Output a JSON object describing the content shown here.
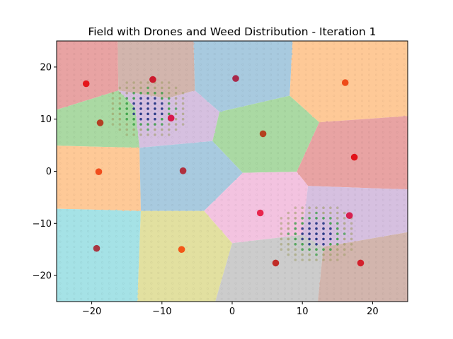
{
  "chart_data": {
    "type": "scatter",
    "title": "Field with Drones and Weed Distribution - Iteration 1",
    "xlabel": "",
    "ylabel": "",
    "xlim": [
      -25,
      25
    ],
    "ylim": [
      -25,
      25
    ],
    "x_ticks": [
      -20,
      -10,
      0,
      10,
      20
    ],
    "x_tick_labels": [
      "−20",
      "−10",
      "0",
      "10",
      "20"
    ],
    "y_ticks": [
      -20,
      -10,
      0,
      10,
      20
    ],
    "y_tick_labels": [
      "−20",
      "−10",
      "0",
      "10",
      "20"
    ],
    "grid": false,
    "regions": [
      {
        "id": 1,
        "color": "#e8a3a3",
        "polygon": [
          [
            -25,
            25
          ],
          [
            -16.3,
            25
          ],
          [
            -16.2,
            15.5
          ],
          [
            -25,
            11.8
          ]
        ]
      },
      {
        "id": 2,
        "color": "#d2b5ad",
        "polygon": [
          [
            -16.3,
            25
          ],
          [
            -5.5,
            25
          ],
          [
            -5.3,
            15.5
          ],
          [
            -9.2,
            14
          ],
          [
            -16.2,
            15.5
          ]
        ]
      },
      {
        "id": 3,
        "color": "#a8cadf",
        "polygon": [
          [
            -5.5,
            25
          ],
          [
            8.6,
            25
          ],
          [
            8.2,
            14.5
          ],
          [
            -1.8,
            11.4
          ],
          [
            -5.3,
            15.5
          ]
        ]
      },
      {
        "id": 4,
        "color": "#fec997",
        "polygon": [
          [
            8.6,
            25
          ],
          [
            25,
            25
          ],
          [
            25,
            10.6
          ],
          [
            12.4,
            9.4
          ],
          [
            8.2,
            14.5
          ]
        ]
      },
      {
        "id": 5,
        "color": "#aad9a3",
        "polygon": [
          [
            -25,
            11.8
          ],
          [
            -16.2,
            15.5
          ],
          [
            -13.8,
            12.2
          ],
          [
            -13.2,
            4.5
          ],
          [
            -25,
            4.9
          ]
        ]
      },
      {
        "id": 6,
        "color": "#d6c0e0",
        "polygon": [
          [
            -16.2,
            15.5
          ],
          [
            -9.2,
            14
          ],
          [
            -5.3,
            15.5
          ],
          [
            -1.8,
            11.4
          ],
          [
            -2.8,
            5.8
          ],
          [
            -13.2,
            4.5
          ],
          [
            -13.8,
            12.2
          ]
        ]
      },
      {
        "id": 7,
        "color": "#aad9a3",
        "polygon": [
          [
            -1.8,
            11.4
          ],
          [
            8.2,
            14.5
          ],
          [
            12.4,
            9.4
          ],
          [
            9.2,
            -0.1
          ],
          [
            1.5,
            -0.3
          ],
          [
            -2.8,
            5.8
          ]
        ]
      },
      {
        "id": 8,
        "color": "#e8a3a3",
        "polygon": [
          [
            12.4,
            9.4
          ],
          [
            25,
            10.6
          ],
          [
            25,
            -3.5
          ],
          [
            10.8,
            -2.8
          ],
          [
            9.2,
            -0.1
          ]
        ]
      },
      {
        "id": 9,
        "color": "#fec997",
        "polygon": [
          [
            -25,
            4.9
          ],
          [
            -13.2,
            4.5
          ],
          [
            -13,
            -7.6
          ],
          [
            -25,
            -7.2
          ]
        ]
      },
      {
        "id": 10,
        "color": "#a8cadf",
        "polygon": [
          [
            -13.2,
            4.5
          ],
          [
            -2.8,
            5.8
          ],
          [
            1.5,
            -0.3
          ],
          [
            -4,
            -7.6
          ],
          [
            -13,
            -7.6
          ]
        ]
      },
      {
        "id": 11,
        "color": "#f3c3e0",
        "polygon": [
          [
            1.5,
            -0.3
          ],
          [
            9.2,
            -0.1
          ],
          [
            10.8,
            -2.8
          ],
          [
            10,
            -12.2
          ],
          [
            0,
            -13.8
          ],
          [
            -4,
            -7.6
          ]
        ]
      },
      {
        "id": 12,
        "color": "#d6c0e0",
        "polygon": [
          [
            10.8,
            -2.8
          ],
          [
            25,
            -3.5
          ],
          [
            25,
            -11.7
          ],
          [
            13,
            -14.5
          ],
          [
            10,
            -12.2
          ]
        ]
      },
      {
        "id": 13,
        "color": "#a5e2e6",
        "polygon": [
          [
            -25,
            -7.2
          ],
          [
            -13,
            -7.6
          ],
          [
            -13.5,
            -25
          ],
          [
            -25,
            -25
          ]
        ]
      },
      {
        "id": 14,
        "color": "#e2e0a0",
        "polygon": [
          [
            -13,
            -7.6
          ],
          [
            -4,
            -7.6
          ],
          [
            0,
            -13.8
          ],
          [
            -2.4,
            -25
          ],
          [
            -13.5,
            -25
          ]
        ]
      },
      {
        "id": 15,
        "color": "#cccccc",
        "polygon": [
          [
            0,
            -13.8
          ],
          [
            10,
            -12.2
          ],
          [
            13,
            -14.5
          ],
          [
            12.2,
            -25
          ],
          [
            -2.4,
            -25
          ]
        ]
      },
      {
        "id": 16,
        "color": "#d2b5ad",
        "polygon": [
          [
            13,
            -14.5
          ],
          [
            25,
            -11.7
          ],
          [
            25,
            -25
          ],
          [
            12.2,
            -25
          ]
        ]
      }
    ],
    "drones": [
      {
        "x": -20.8,
        "y": 16.8,
        "color": "#e5161b"
      },
      {
        "x": -11.3,
        "y": 17.6,
        "color": "#cc1a2d"
      },
      {
        "x": 0.5,
        "y": 17.8,
        "color": "#a8284a"
      },
      {
        "x": 16.1,
        "y": 17.0,
        "color": "#ee4a18"
      },
      {
        "x": -18.8,
        "y": 9.3,
        "color": "#b33f24"
      },
      {
        "x": -8.7,
        "y": 10.2,
        "color": "#d8184c"
      },
      {
        "x": 4.4,
        "y": 7.2,
        "color": "#b4411f"
      },
      {
        "x": 17.4,
        "y": 2.7,
        "color": "#e2121a"
      },
      {
        "x": -19.0,
        "y": -0.1,
        "color": "#f14d1c"
      },
      {
        "x": -7.0,
        "y": 0.1,
        "color": "#b02f3e"
      },
      {
        "x": 4.0,
        "y": -8.0,
        "color": "#e8264e"
      },
      {
        "x": 16.7,
        "y": -8.5,
        "color": "#d6204f"
      },
      {
        "x": -19.3,
        "y": -14.8,
        "color": "#a83743"
      },
      {
        "x": -7.2,
        "y": -15.0,
        "color": "#f35717"
      },
      {
        "x": 6.2,
        "y": -17.6,
        "color": "#c02b26"
      },
      {
        "x": 18.3,
        "y": -17.6,
        "color": "#d3202c"
      }
    ],
    "weed_clusters": [
      {
        "center_x": -12,
        "center_y": 12,
        "spread": 3.2
      },
      {
        "center_x": 12,
        "center_y": -12,
        "spread": 3.2
      }
    ],
    "weed_grid_step": 1,
    "weed_colors": {
      "low": "#9b9b62",
      "mid": "#2e9a3a",
      "high": "#2a3a86"
    }
  }
}
